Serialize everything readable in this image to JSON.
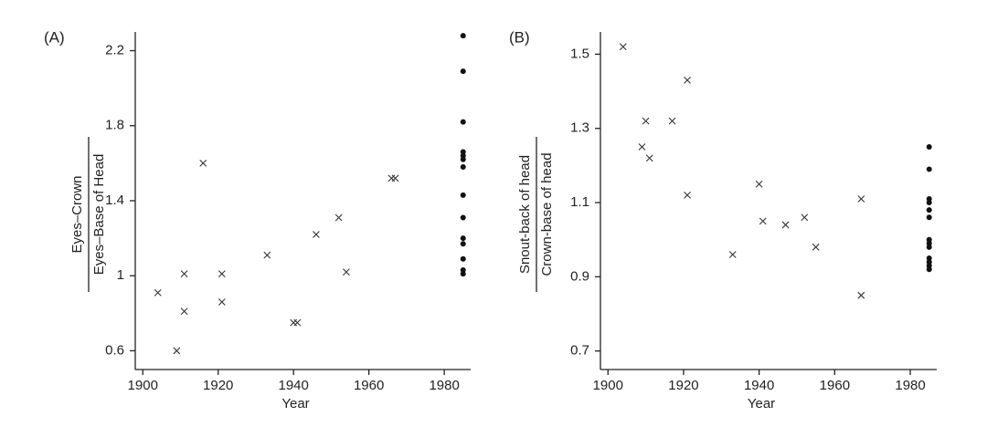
{
  "chart_data": [
    {
      "type": "scatter",
      "panel_label": "(A)",
      "x_label": "Year",
      "y_label_numerator": "Eyes–Crown",
      "y_label_denominator": "Eyes–Base of Head",
      "xlim": [
        1898,
        1987
      ],
      "xticks": [
        1900,
        1920,
        1940,
        1960,
        1980
      ],
      "ylim": [
        0.5,
        2.3
      ],
      "yticks": [
        0.6,
        1.0,
        1.4,
        1.8,
        2.2
      ],
      "series": [
        {
          "marker": "x",
          "color": "#333333",
          "x": [
            1904,
            1909,
            1911,
            1911,
            1916,
            1921,
            1921,
            1933,
            1940,
            1941,
            1946,
            1952,
            1954,
            1966,
            1967
          ],
          "y": [
            0.91,
            0.6,
            1.01,
            0.81,
            1.6,
            1.01,
            0.86,
            1.11,
            0.75,
            0.75,
            1.22,
            1.31,
            1.02,
            1.52,
            1.52
          ]
        },
        {
          "marker": "dot",
          "color": "#111111",
          "x": [
            1985,
            1985,
            1985,
            1985,
            1985,
            1985,
            1985,
            1985,
            1985,
            1985,
            1985,
            1985,
            1985,
            1985
          ],
          "y": [
            2.28,
            2.09,
            1.82,
            1.66,
            1.64,
            1.62,
            1.58,
            1.43,
            1.31,
            1.2,
            1.17,
            1.09,
            1.03,
            1.01
          ]
        }
      ]
    },
    {
      "type": "scatter",
      "panel_label": "(B)",
      "x_label": "Year",
      "y_label_numerator": "Snout-back of head",
      "y_label_denominator": "Crown-base of head",
      "xlim": [
        1898,
        1987
      ],
      "xticks": [
        1900,
        1920,
        1940,
        1960,
        1980
      ],
      "ylim": [
        0.65,
        1.56
      ],
      "yticks": [
        0.7,
        0.9,
        1.1,
        1.3,
        1.5
      ],
      "series": [
        {
          "marker": "x",
          "color": "#333333",
          "x": [
            1904,
            1909,
            1910,
            1911,
            1917,
            1921,
            1921,
            1933,
            1940,
            1941,
            1947,
            1952,
            1955,
            1967,
            1967
          ],
          "y": [
            1.52,
            1.25,
            1.32,
            1.22,
            1.32,
            1.43,
            1.12,
            0.96,
            1.15,
            1.05,
            1.04,
            1.06,
            0.98,
            1.11,
            0.85
          ]
        },
        {
          "marker": "dot",
          "color": "#111111",
          "x": [
            1985,
            1985,
            1985,
            1985,
            1985,
            1985,
            1985,
            1985,
            1985,
            1985,
            1985,
            1985,
            1985
          ],
          "y": [
            1.25,
            1.19,
            1.11,
            1.1,
            1.08,
            1.06,
            1.0,
            0.99,
            0.98,
            0.95,
            0.94,
            0.93,
            0.92
          ]
        }
      ]
    }
  ]
}
